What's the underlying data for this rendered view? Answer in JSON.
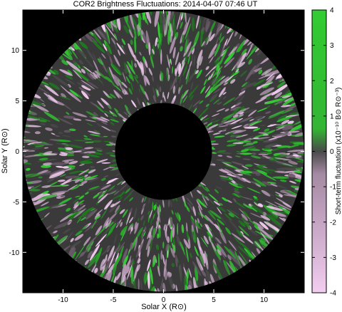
{
  "chart_data": {
    "type": "heatmap",
    "title": "COR2 Brightness Fluctuations: 2014-04-07 07:46 UT",
    "xlabel": "Solar X (R⊙)",
    "ylabel": "Solar Y (R⊙)",
    "colorbar_label": "Short-term fluctuation (x10⁻¹⁰ B⊙ R⊙⁻³)",
    "xlim": [
      -14,
      14
    ],
    "ylim": [
      -14,
      14
    ],
    "xticks": [
      -10,
      -5,
      0,
      5,
      10
    ],
    "yticks": [
      -10,
      -5,
      0,
      5,
      10
    ],
    "xtick_labels": [
      "-10",
      "-5",
      "0",
      "5",
      "10"
    ],
    "ytick_labels": [
      "-10",
      "-5",
      "0",
      "5",
      "10"
    ],
    "occulter_radius": 5,
    "field_outer_radius": 14,
    "colorbar_range": [
      -4,
      4
    ],
    "colorbar_ticks": [
      4,
      3,
      2,
      1,
      0,
      -1,
      -2,
      -3,
      -4
    ],
    "colorbar_tick_labels": [
      "4",
      "3",
      "2",
      "1",
      "0",
      "-1",
      "-2",
      "-3",
      "-4"
    ],
    "colormap": {
      "positive": "#33cc33",
      "zero": "#4a4a4a",
      "negative": "#f2cdf0"
    },
    "background_color": "#000000"
  }
}
